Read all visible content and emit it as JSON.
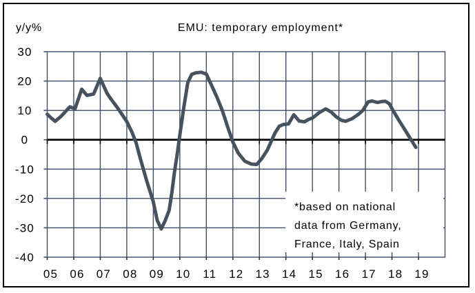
{
  "window": {
    "background_color": "#ffffff",
    "border_color": "#000000"
  },
  "chart": {
    "title": "EMU: temporary employment*",
    "y_unit_label": "y/y%"
  },
  "annotation": {
    "lines": [
      "*based on national",
      "data from Germany,",
      "France, Italy, Spain"
    ]
  },
  "chart_data": {
    "type": "line",
    "title": "EMU: temporary employment*",
    "ylabel": "y/y%",
    "xlabel": "",
    "x_tick_labels": [
      "05",
      "06",
      "07",
      "08",
      "09",
      "10",
      "11",
      "12",
      "13",
      "14",
      "15",
      "16",
      "17",
      "18",
      "19"
    ],
    "x_range": [
      2005,
      2020
    ],
    "ylim": [
      -40,
      30
    ],
    "y_ticks": [
      30,
      20,
      10,
      0,
      -10,
      -20,
      -30,
      -40
    ],
    "grid": true,
    "legend": "none",
    "line_color": "#46525E",
    "grid_color": "#3E4D66",
    "axis_color": "#000000",
    "annotation_note": "*based on national data from Germany, France, Italy, Spain",
    "series": [
      {
        "name": "EMU temporary employment, y/y %",
        "points": [
          [
            2005.0,
            8.7
          ],
          [
            2005.15,
            7.4
          ],
          [
            2005.3,
            6.3
          ],
          [
            2005.5,
            7.8
          ],
          [
            2005.65,
            9.2
          ],
          [
            2005.85,
            11.2
          ],
          [
            2006.05,
            10.6
          ],
          [
            2006.3,
            17.2
          ],
          [
            2006.5,
            15.1
          ],
          [
            2006.75,
            15.6
          ],
          [
            2007.0,
            20.9
          ],
          [
            2007.25,
            15.9
          ],
          [
            2007.4,
            13.9
          ],
          [
            2007.65,
            10.9
          ],
          [
            2007.8,
            8.9
          ],
          [
            2008.0,
            6.2
          ],
          [
            2008.2,
            2.5
          ],
          [
            2008.35,
            -1.0
          ],
          [
            2008.5,
            -6.0
          ],
          [
            2008.75,
            -14.0
          ],
          [
            2009.0,
            -21.2
          ],
          [
            2009.15,
            -27.5
          ],
          [
            2009.3,
            -30.4
          ],
          [
            2009.45,
            -27.5
          ],
          [
            2009.6,
            -24.0
          ],
          [
            2009.7,
            -18.0
          ],
          [
            2009.8,
            -11.0
          ],
          [
            2009.9,
            -5.0
          ],
          [
            2010.0,
            1.5
          ],
          [
            2010.15,
            11.0
          ],
          [
            2010.3,
            19.5
          ],
          [
            2010.45,
            22.3
          ],
          [
            2010.6,
            22.8
          ],
          [
            2010.8,
            23.0
          ],
          [
            2011.0,
            22.4
          ],
          [
            2011.2,
            18.5
          ],
          [
            2011.4,
            14.5
          ],
          [
            2011.6,
            10.0
          ],
          [
            2011.8,
            4.5
          ],
          [
            2012.0,
            -0.8
          ],
          [
            2012.2,
            -4.5
          ],
          [
            2012.45,
            -7.3
          ],
          [
            2012.7,
            -8.3
          ],
          [
            2012.9,
            -8.4
          ],
          [
            2013.1,
            -6.3
          ],
          [
            2013.3,
            -3.5
          ],
          [
            2013.45,
            -0.5
          ],
          [
            2013.6,
            2.5
          ],
          [
            2013.75,
            4.6
          ],
          [
            2013.9,
            5.2
          ],
          [
            2014.1,
            5.4
          ],
          [
            2014.3,
            8.5
          ],
          [
            2014.5,
            6.4
          ],
          [
            2014.7,
            6.1
          ],
          [
            2014.85,
            6.9
          ],
          [
            2015.0,
            7.4
          ],
          [
            2015.25,
            9.2
          ],
          [
            2015.5,
            10.5
          ],
          [
            2015.7,
            9.5
          ],
          [
            2015.9,
            7.8
          ],
          [
            2016.1,
            6.6
          ],
          [
            2016.25,
            6.3
          ],
          [
            2016.5,
            7.2
          ],
          [
            2016.75,
            8.8
          ],
          [
            2016.9,
            10.0
          ],
          [
            2017.1,
            12.9
          ],
          [
            2017.25,
            13.2
          ],
          [
            2017.45,
            12.7
          ],
          [
            2017.6,
            13.0
          ],
          [
            2017.75,
            13.1
          ],
          [
            2017.9,
            12.3
          ],
          [
            2018.0,
            10.6
          ],
          [
            2018.25,
            6.8
          ],
          [
            2018.5,
            3.2
          ],
          [
            2018.7,
            0.3
          ],
          [
            2018.9,
            -2.6
          ]
        ]
      }
    ]
  }
}
